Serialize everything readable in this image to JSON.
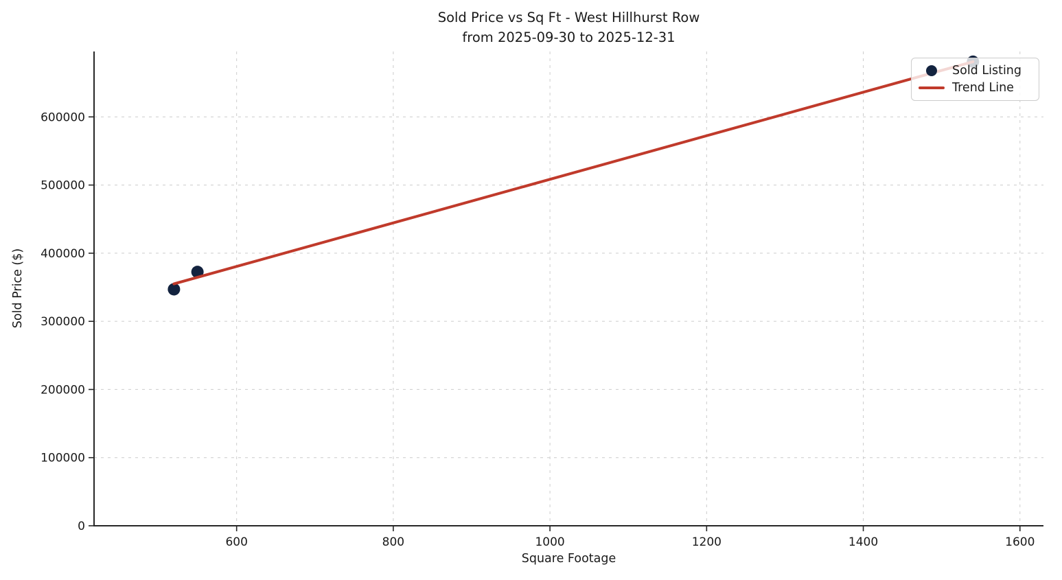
{
  "title": {
    "line1": "Sold Price vs Sq Ft - West Hillhurst Row",
    "line2": "from 2025-09-30 to 2025-12-31"
  },
  "chart_data": {
    "type": "scatter",
    "title": "Sold Price vs Sq Ft - West Hillhurst Row\nfrom 2025-09-30 to 2025-12-31",
    "xlabel": "Square Footage",
    "ylabel": "Sold Price ($)",
    "xlim": [
      418,
      1630
    ],
    "ylim": [
      0,
      696000
    ],
    "xticks": [
      600,
      800,
      1000,
      1200,
      1400,
      1600
    ],
    "yticks": [
      0,
      100000,
      200000,
      300000,
      400000,
      500000,
      600000
    ],
    "grid": true,
    "grid_style": "dashed",
    "legend_position": "upper right",
    "series": [
      {
        "name": "Sold Listing",
        "type": "scatter",
        "color": "#13233f",
        "marker_size": 9,
        "points": [
          {
            "x": 520,
            "y": 347000
          },
          {
            "x": 550,
            "y": 372500
          },
          {
            "x": 1540,
            "y": 681000
          }
        ]
      },
      {
        "name": "Trend Line",
        "type": "line",
        "color": "#c03a2b",
        "line_width": 4,
        "points": [
          {
            "x": 520,
            "y": 355000
          },
          {
            "x": 1540,
            "y": 681000
          }
        ]
      }
    ],
    "legend": {
      "entries": [
        {
          "label": "Sold Listing",
          "marker": "dot",
          "color": "#13233f"
        },
        {
          "label": "Trend Line",
          "marker": "line",
          "color": "#c03a2b"
        }
      ]
    }
  }
}
